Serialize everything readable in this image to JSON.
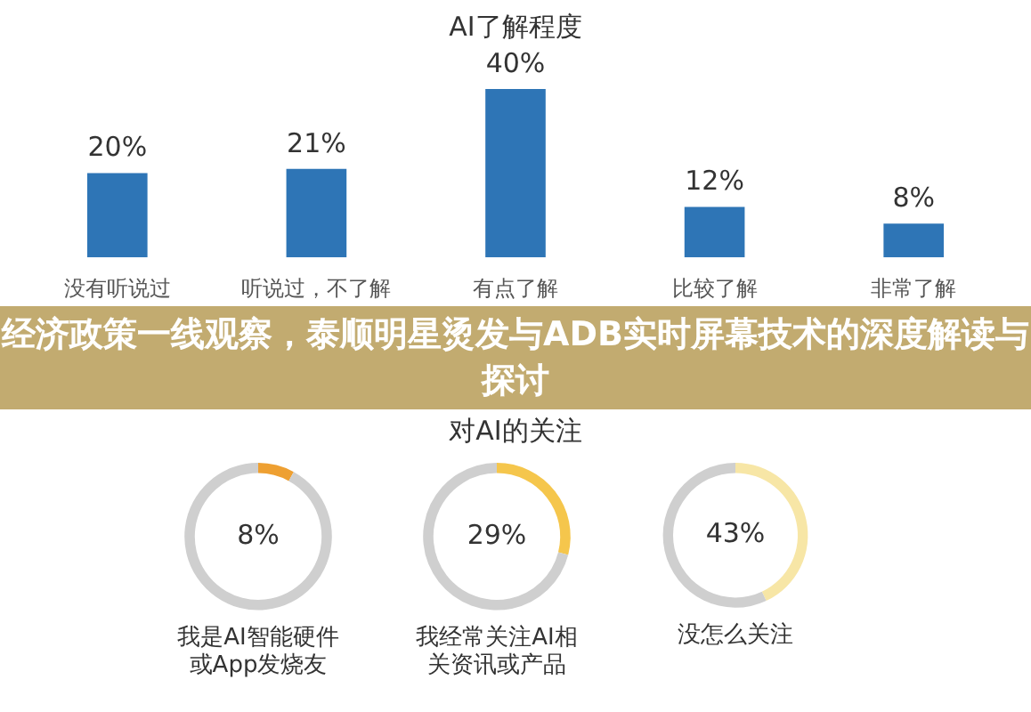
{
  "chart_data": [
    {
      "type": "bar",
      "title": "AI了解程度",
      "categories": [
        "没有听说过",
        "听说过，不了解",
        "有点了解",
        "比较了解",
        "非常了解"
      ],
      "values": [
        20,
        21,
        40,
        12,
        8
      ],
      "color": "#2e75b6",
      "tick_labels": "x",
      "value_labels": [
        "20%",
        "21%",
        "40%",
        "12%",
        "8%"
      ],
      "annotations": [
        "经济政策一线观察，泰顺明星烫发与ADB实时屏幕技术的深度解读与探讨"
      ]
    },
    {
      "type": "other",
      "title": "对AI的关注"
    },
    {
      "type": "donut",
      "title": "我是AI智能硬件或App发烧友",
      "categories": [
        null,
        null
      ],
      "values": [
        8,
        92
      ],
      "colors": [
        "#eea032",
        "#cfcfcf"
      ],
      "value_labels": [
        "8%",
        null
      ]
    },
    {
      "type": "donut",
      "title": "我经常关注AI相关资讯或产品",
      "categories": [
        null,
        null
      ],
      "values": [
        29,
        71
      ],
      "colors": [
        "#f5c64c",
        "#cfcfcf"
      ],
      "value_labels": [
        "29%",
        null
      ]
    },
    {
      "type": "donut",
      "title": "没怎么关注",
      "categories": [
        null,
        null
      ],
      "values": [
        43,
        57
      ],
      "colors": [
        "#f7e6a6",
        "#cfcfcf"
      ],
      "value_labels": [
        "43%",
        null
      ]
    }
  ]
}
